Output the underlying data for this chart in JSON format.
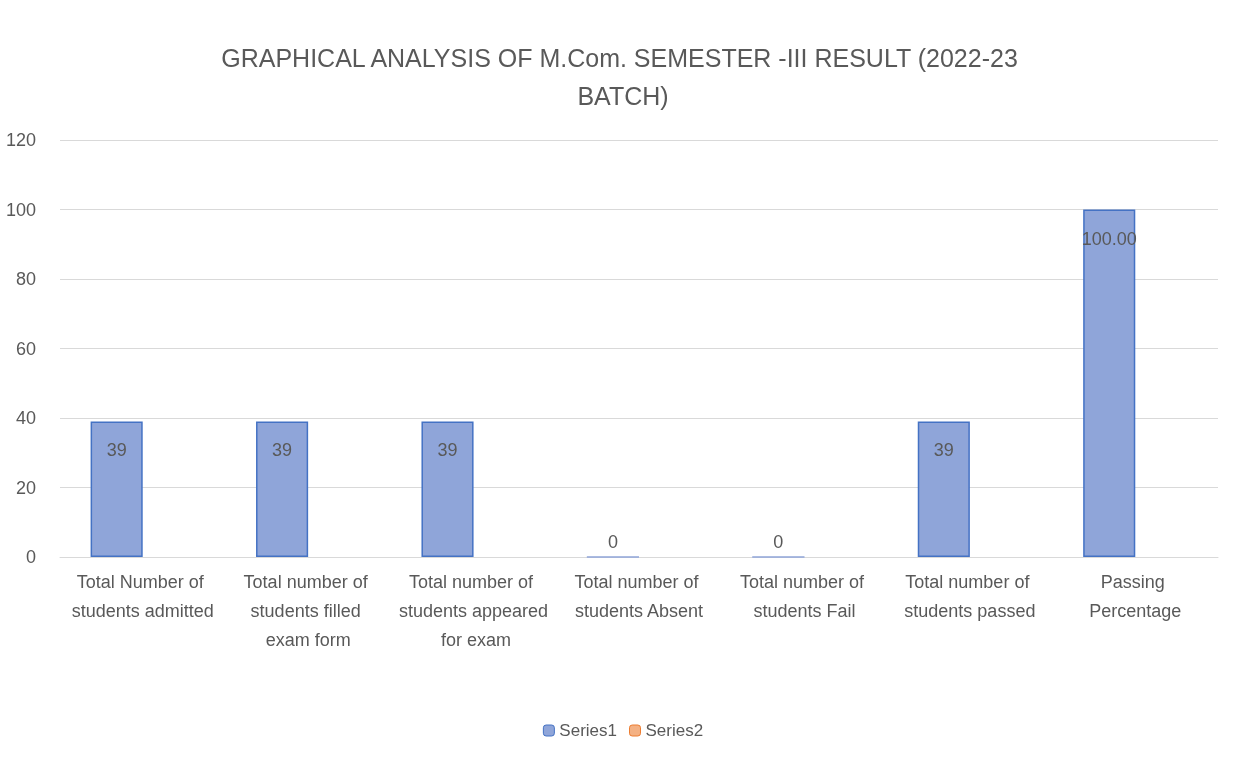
{
  "chart_data": {
    "type": "bar",
    "title": "GRAPHICAL ANALYSIS OF M.Com. SEMESTER -III RESULT (2022-23 BATCH)",
    "categories": [
      "Total Number of students admitted",
      "Total number of students filled exam form",
      "Total number of students appeared for exam",
      "Total number of students Absent",
      "Total number of students Fail",
      "Total number of students passed",
      "Passing Percentage"
    ],
    "series": [
      {
        "name": "Series1",
        "color": "#8fa5d9",
        "values": [
          39,
          39,
          39,
          0,
          0,
          39,
          100
        ],
        "value_labels": [
          "39",
          "39",
          "39",
          "0",
          "0",
          "39",
          "100.00"
        ]
      },
      {
        "name": "Series2",
        "color": "#f4b183",
        "values": [
          null,
          null,
          null,
          null,
          null,
          null,
          null
        ]
      }
    ],
    "ylim": [
      0,
      120
    ],
    "yticks": [
      0,
      20,
      40,
      60,
      80,
      100,
      120
    ],
    "grid": "y",
    "legend": "bottom"
  }
}
